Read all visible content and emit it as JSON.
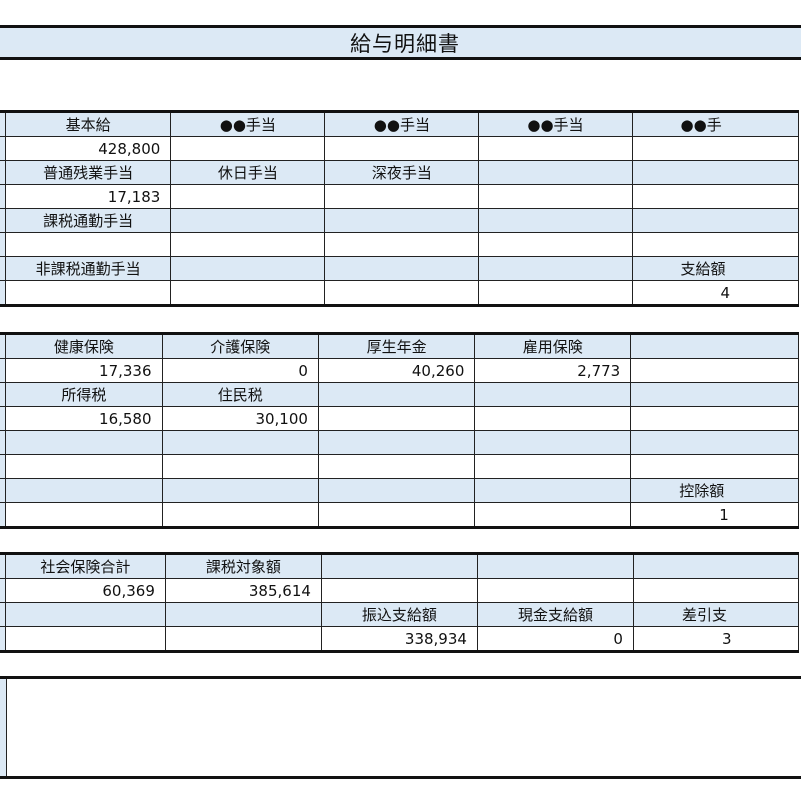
{
  "title": "給与明細書",
  "colors": {
    "header_fill": "#dce9f5",
    "border": "#111111"
  },
  "tables": [
    {
      "name": "payments-table",
      "rows": [
        {
          "type": "header",
          "cells": [
            "基本給",
            "●●手当",
            "●●手当",
            "●●手当",
            "●●手"
          ]
        },
        {
          "type": "value",
          "cells": [
            "428,800",
            "",
            "",
            "",
            ""
          ]
        },
        {
          "type": "header",
          "cells": [
            "普通残業手当",
            "休日手当",
            "深夜手当",
            "",
            ""
          ]
        },
        {
          "type": "value",
          "cells": [
            "17,183",
            "",
            "",
            "",
            ""
          ]
        },
        {
          "type": "header",
          "cells": [
            "課税通勤手当",
            "",
            "",
            "",
            ""
          ]
        },
        {
          "type": "value",
          "cells": [
            "",
            "",
            "",
            "",
            ""
          ]
        },
        {
          "type": "header",
          "cells": [
            "非課税通勤手当",
            "",
            "",
            "",
            "支給額"
          ]
        },
        {
          "type": "value",
          "cells": [
            "",
            "",
            "",
            "",
            "4"
          ]
        }
      ]
    },
    {
      "name": "deductions-table",
      "rows": [
        {
          "type": "header",
          "cells": [
            "健康保険",
            "介護保険",
            "厚生年金",
            "雇用保険",
            ""
          ]
        },
        {
          "type": "value",
          "cells": [
            "17,336",
            "0",
            "40,260",
            "2,773",
            ""
          ]
        },
        {
          "type": "header",
          "cells": [
            "所得税",
            "住民税",
            "",
            "",
            ""
          ]
        },
        {
          "type": "value",
          "cells": [
            "16,580",
            "30,100",
            "",
            "",
            ""
          ]
        },
        {
          "type": "header",
          "cells": [
            "",
            "",
            "",
            "",
            ""
          ]
        },
        {
          "type": "value",
          "cells": [
            "",
            "",
            "",
            "",
            ""
          ]
        },
        {
          "type": "header",
          "cells": [
            "",
            "",
            "",
            "",
            "控除額"
          ]
        },
        {
          "type": "value",
          "cells": [
            "",
            "",
            "",
            "",
            "1"
          ]
        }
      ]
    },
    {
      "name": "totals-table",
      "rows": [
        {
          "type": "header",
          "cells": [
            "社会保険合計",
            "課税対象額",
            "",
            "",
            ""
          ]
        },
        {
          "type": "value",
          "cells": [
            "60,369",
            "385,614",
            "",
            "",
            ""
          ]
        },
        {
          "type": "header",
          "cells": [
            "",
            "",
            "振込支給額",
            "現金支給額",
            "差引支"
          ]
        },
        {
          "type": "value",
          "cells": [
            "",
            "",
            "338,934",
            "0",
            "3"
          ]
        }
      ]
    }
  ]
}
